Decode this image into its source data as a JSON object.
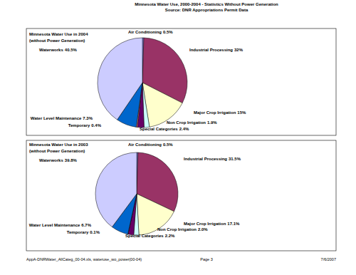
{
  "page": {
    "title": "Minnesota Water Use, 2000-2004 - Statistics Without Power Generation",
    "subtitle": "Source: DNR Appropriations Permit Data",
    "footer_left": "AppA-DNRWater_AllCateg_00-04.xls, wateruse_wo_power(00-04)",
    "footer_center": "Page 3",
    "footer_right": "7/6/2007"
  },
  "chart_data": [
    {
      "type": "pie",
      "title": "Minnesota Water Use in 2004",
      "subtitle": "(without Power Generation)",
      "categories": [
        "Air Conditioning",
        "Industrial Processing",
        "Major Crop Irrigation",
        "Non Crop Irrigation",
        "Special Categories",
        "Temporary",
        "Water Level Maintenance",
        "Waterworks"
      ],
      "values": [
        0.5,
        32,
        15,
        1.9,
        2.4,
        0.4,
        7.3,
        40.5
      ],
      "value_labels": [
        "0.5%",
        "32%",
        "15%",
        "1.9%",
        "2.4%",
        "0.4%",
        "7.3%",
        "40.5%"
      ],
      "colors": [
        "#9999ff",
        "#993366",
        "#ffffcc",
        "#ccffff",
        "#660066",
        "#ff8080",
        "#0066cc",
        "#ccccff"
      ],
      "data_labels": true
    },
    {
      "type": "pie",
      "title": "Minnesota Water Use in 2003",
      "subtitle": "(without Power Generation)",
      "categories": [
        "Air Conditioning",
        "Industrial Processing",
        "Major Crop Irrigation",
        "Non Crop Irrigation",
        "Special Categories",
        "Temporary",
        "Water Level Maintenance",
        "Waterworks"
      ],
      "values": [
        0.5,
        31.5,
        17.1,
        2.0,
        2.2,
        0.1,
        6.7,
        39.8
      ],
      "value_labels": [
        "0.5%",
        "31.5%",
        "17.1%",
        "2.0%",
        "2.2%",
        "0.1%",
        "6.7%",
        "39.8%"
      ],
      "colors": [
        "#9999ff",
        "#993366",
        "#ffffcc",
        "#ccffff",
        "#660066",
        "#ff8080",
        "#0066cc",
        "#ccccff"
      ],
      "data_labels": true
    }
  ]
}
